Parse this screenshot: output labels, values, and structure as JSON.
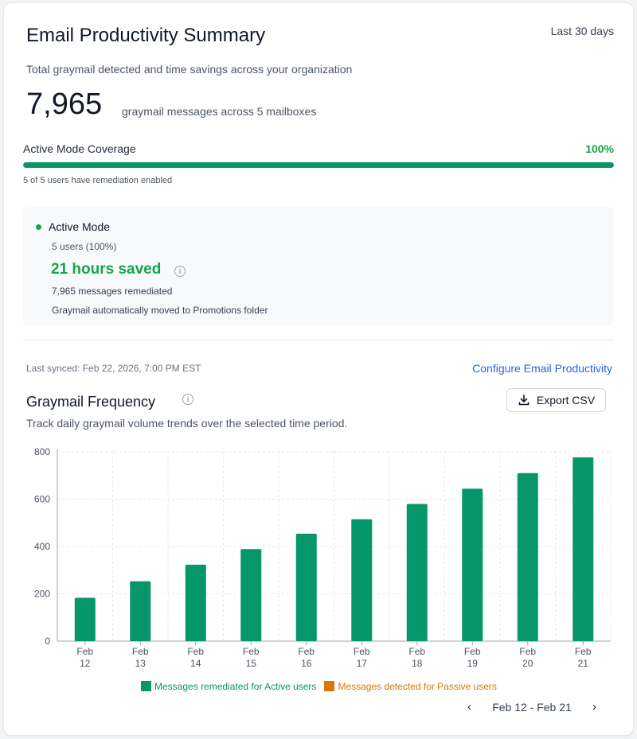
{
  "header": {
    "title": "Email Productivity Summary",
    "range": "Last 30 days",
    "subtitle": "Total graymail detected and time savings across your organization"
  },
  "summary": {
    "count": "7,965",
    "count_desc": "graymail messages across 5 mailboxes"
  },
  "coverage": {
    "label": "Active Mode Coverage",
    "percent_label": "100%",
    "fraction": 1.0,
    "note": "5 of 5  users have remediation enabled"
  },
  "active_mode": {
    "title": "Active Mode",
    "users": "5 users (100%)",
    "saved": "21 hours saved",
    "remediated": "7,965  messages remediated",
    "description": "Graymail automatically moved to Promotions folder"
  },
  "sync": {
    "last_synced": "Last synced: Feb 22, 2026, 7:00 PM EST",
    "configure_link": "Configure Email Productivity"
  },
  "frequency": {
    "title": "Graymail Frequency",
    "description": "Track daily graymail volume trends over the selected time period.",
    "export_label": "Export CSV"
  },
  "chart_data": {
    "type": "bar",
    "categories": [
      "Feb 12",
      "Feb 13",
      "Feb 14",
      "Feb 15",
      "Feb 16",
      "Feb 17",
      "Feb 18",
      "Feb 19",
      "Feb 20",
      "Feb 21"
    ],
    "categories_top": [
      "Feb",
      "Feb",
      "Feb",
      "Feb",
      "Feb",
      "Feb",
      "Feb",
      "Feb",
      "Feb",
      "Feb"
    ],
    "categories_bottom": [
      "12",
      "13",
      "14",
      "15",
      "16",
      "17",
      "18",
      "19",
      "20",
      "21"
    ],
    "series": [
      {
        "name": "Messages remediated for Active users",
        "color": "#059669",
        "values": [
          183,
          253,
          323,
          389,
          454,
          515,
          580,
          644,
          710,
          777
        ]
      },
      {
        "name": "Messages detected for Passive users",
        "color": "#d97706",
        "values": [
          0,
          0,
          0,
          0,
          0,
          0,
          0,
          0,
          0,
          0
        ]
      }
    ],
    "yticks": [
      "0",
      "200",
      "400",
      "600",
      "800"
    ],
    "ylim": [
      0,
      800
    ],
    "grid": true,
    "legend": "bottom"
  },
  "pager": {
    "label": "Feb 12 - Feb 21",
    "prev_icon": "chevron-left-icon",
    "next_icon": "chevron-right-icon"
  },
  "colors": {
    "accent_green": "#16a34a",
    "bar_green": "#059669",
    "passive_orange": "#d97706",
    "link_blue": "#2563eb"
  }
}
